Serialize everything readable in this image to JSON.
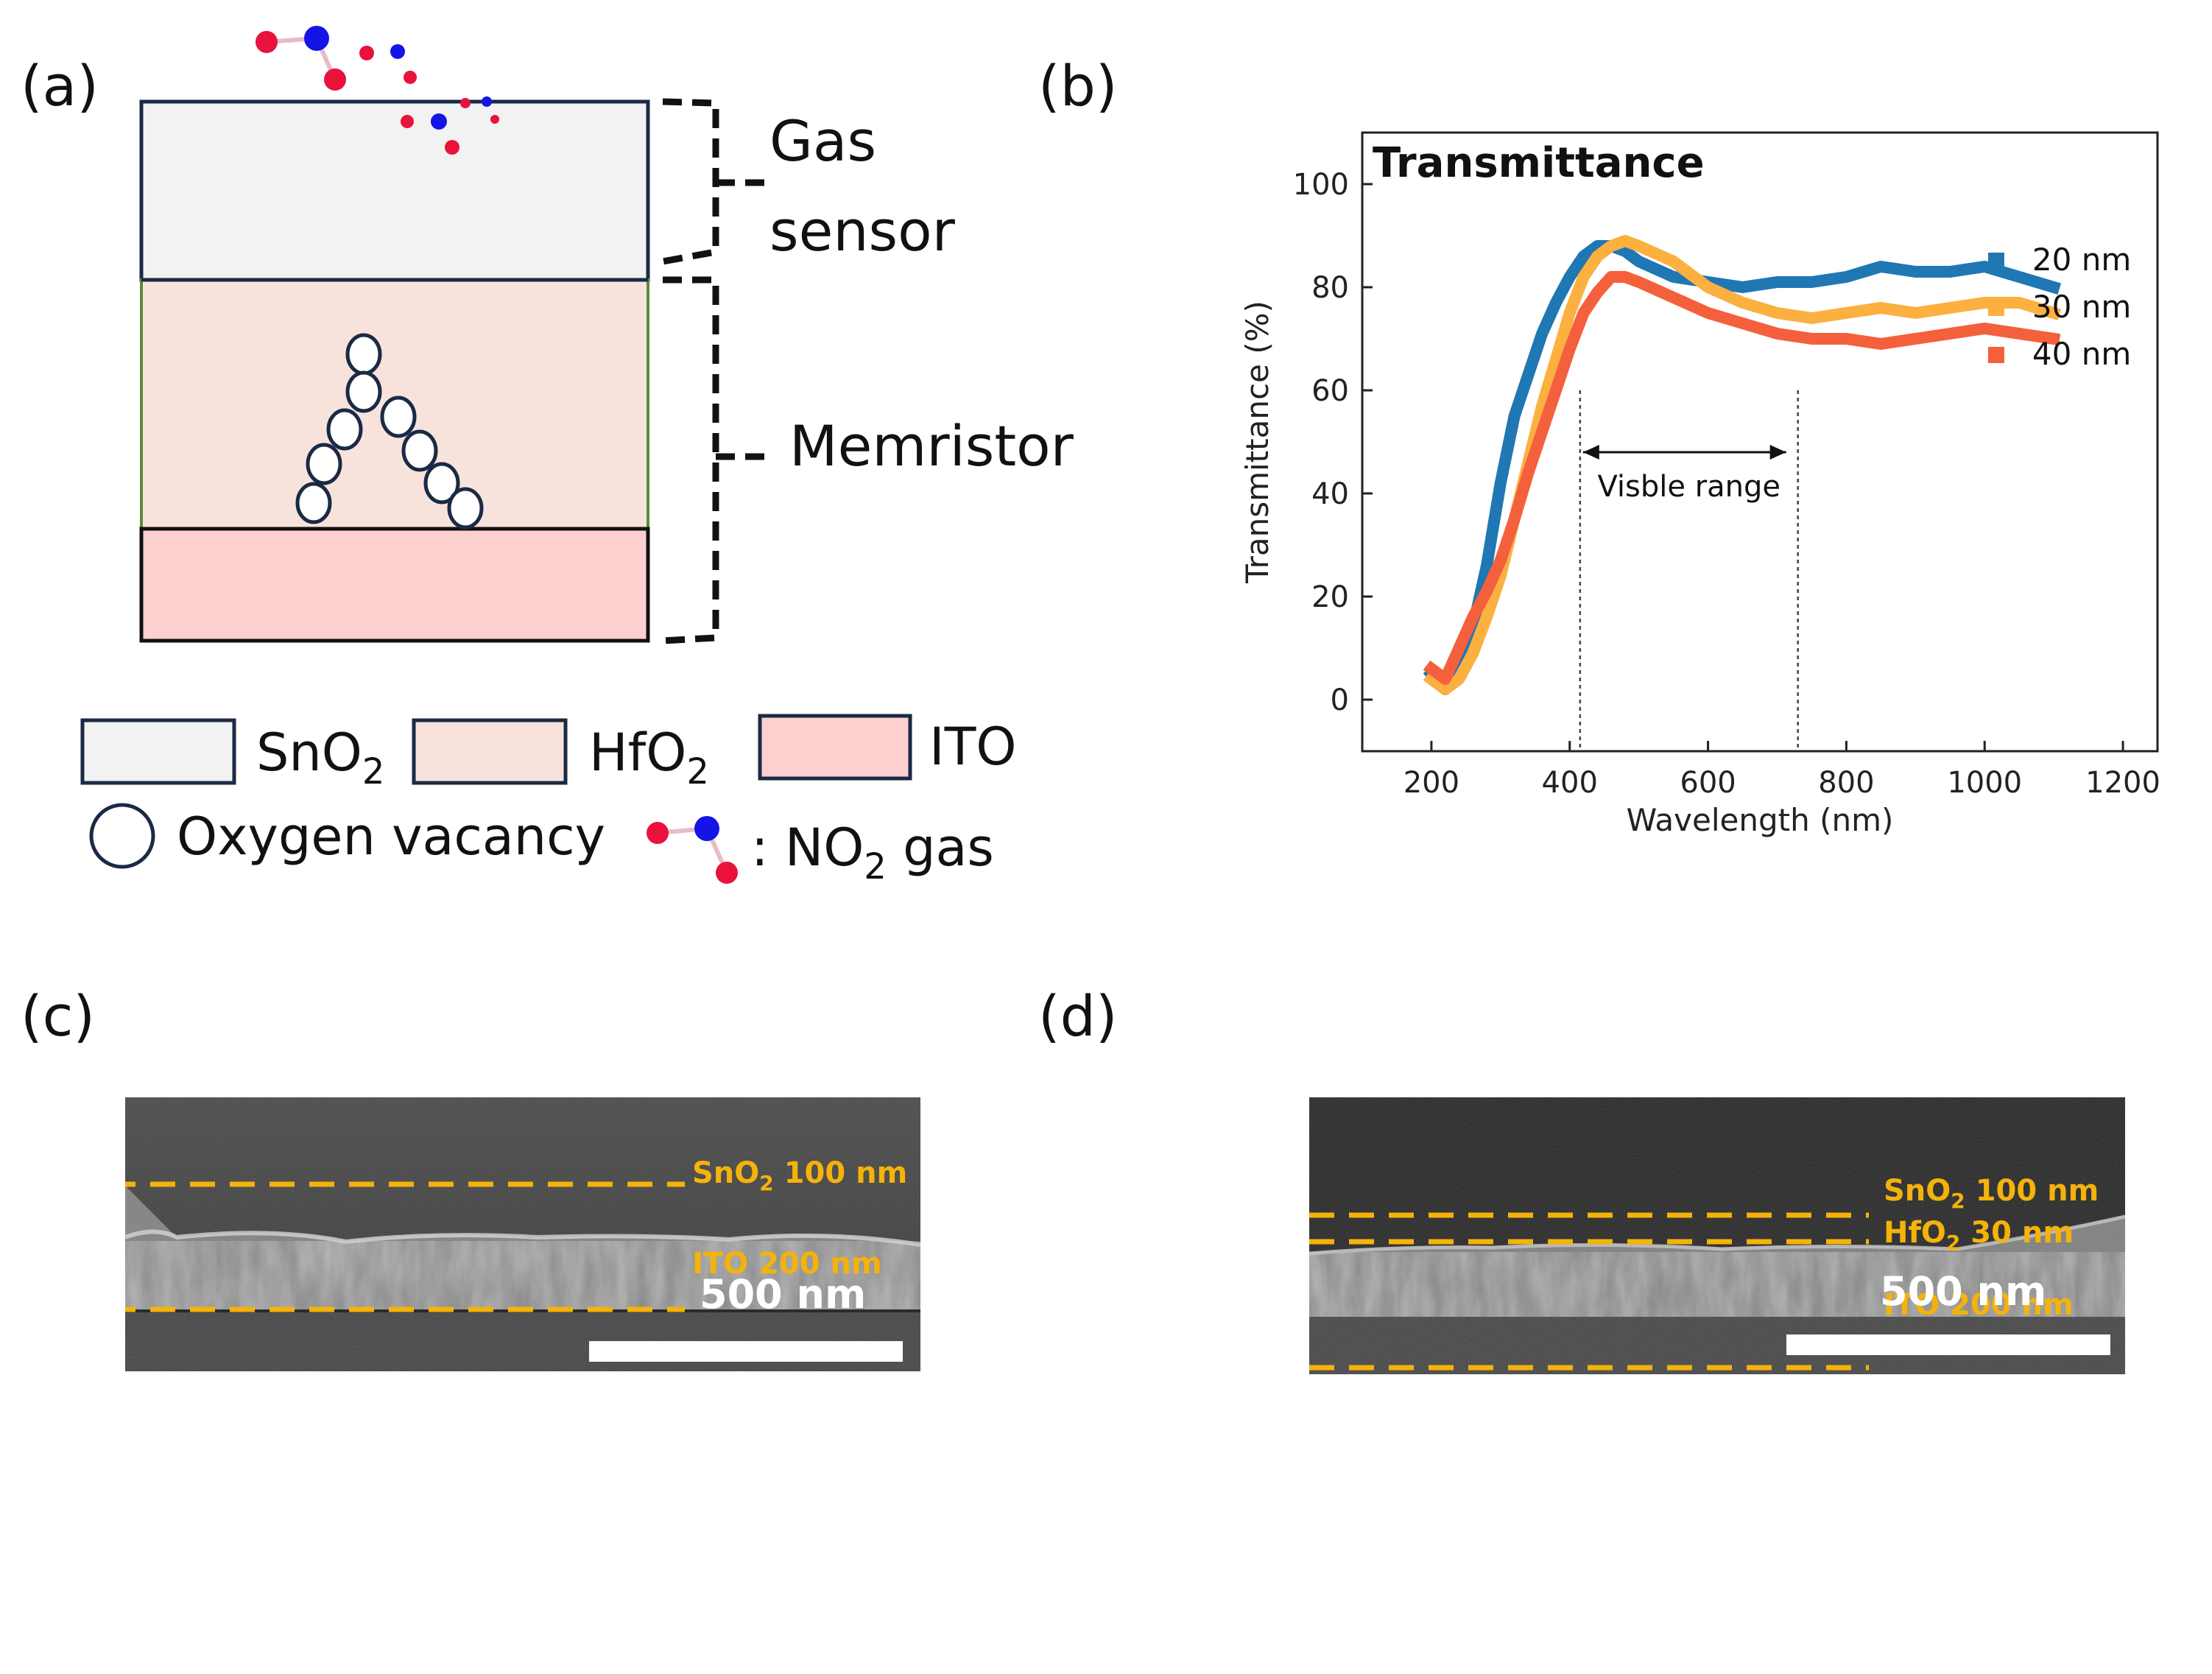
{
  "panels": {
    "a": "(a)",
    "b": "(b)",
    "c": "(c)",
    "d": "(d)"
  },
  "diagram_a": {
    "gas_sensor_label_line1": "Gas",
    "gas_sensor_label_line2": "sensor",
    "memristor_label": "Memristor",
    "legend": {
      "sno2": "SnO",
      "sno2_sub": "2",
      "hfo2": "HfO",
      "hfo2_sub": "2",
      "ito": "ITO",
      "oxygen_vacancy": "Oxygen vacancy",
      "no2_prefix": ": NO",
      "no2_sub": "2",
      "no2_suffix": " gas"
    },
    "colors": {
      "sno2": "#f2f2f2",
      "hfo2": "#f8e3dc",
      "ito": "#fdd0cf",
      "oxygen_red": "#e8123c",
      "nitrogen_blue": "#1414e6",
      "outline": "#1b2a44"
    }
  },
  "chart_data": {
    "type": "line",
    "title": "Transmittance",
    "xlabel": "Wavelength (nm)",
    "ylabel": "Transmittance (%)",
    "xlim": [
      100,
      1250
    ],
    "ylim": [
      -10,
      110
    ],
    "xticks": [
      200,
      400,
      600,
      800,
      1000,
      1200
    ],
    "yticks": [
      0,
      20,
      40,
      60,
      80,
      100
    ],
    "legend_position": "right",
    "annotation": "Visble range",
    "visible_range": [
      415,
      730
    ],
    "series": [
      {
        "name": "20 nm",
        "color": "#1f77b4",
        "x": [
          200,
          220,
          240,
          260,
          280,
          300,
          320,
          340,
          360,
          380,
          400,
          420,
          440,
          460,
          480,
          500,
          550,
          600,
          650,
          700,
          750,
          800,
          850,
          900,
          950,
          1000,
          1050,
          1100
        ],
        "y": [
          5,
          2,
          6,
          14,
          26,
          42,
          55,
          63,
          71,
          77,
          82,
          86,
          88,
          88,
          87,
          85,
          82,
          81,
          80,
          81,
          81,
          82,
          84,
          83,
          83,
          84,
          82,
          80
        ]
      },
      {
        "name": "30 nm",
        "color": "#fbb040",
        "x": [
          200,
          220,
          240,
          260,
          280,
          300,
          320,
          340,
          360,
          380,
          400,
          420,
          440,
          460,
          480,
          500,
          550,
          600,
          650,
          700,
          750,
          800,
          850,
          900,
          950,
          1000,
          1050,
          1100
        ],
        "y": [
          4,
          2,
          4,
          9,
          16,
          24,
          35,
          46,
          57,
          66,
          75,
          82,
          86,
          88,
          89,
          88,
          85,
          80,
          77,
          75,
          74,
          75,
          76,
          75,
          76,
          77,
          77,
          75
        ]
      },
      {
        "name": "40 nm",
        "color": "#f4603c",
        "x": [
          200,
          220,
          240,
          260,
          280,
          300,
          320,
          340,
          360,
          380,
          400,
          420,
          440,
          460,
          480,
          500,
          550,
          600,
          650,
          700,
          750,
          800,
          850,
          900,
          950,
          1000,
          1050,
          1100
        ],
        "y": [
          6,
          4,
          10,
          16,
          21,
          27,
          35,
          44,
          52,
          60,
          68,
          75,
          79,
          82,
          82,
          81,
          78,
          75,
          73,
          71,
          70,
          70,
          69,
          70,
          71,
          72,
          71,
          70
        ]
      }
    ]
  },
  "sem_c": {
    "label_sno2": "SnO",
    "label_sno2_sub": "2",
    "label_sno2_value": " 100 nm",
    "label_ito": "ITO 200 nm",
    "scale_bar": "500 nm"
  },
  "sem_d": {
    "label_sno2": "SnO",
    "label_sno2_sub": "2",
    "label_sno2_value": " 100 nm",
    "label_hfo2": "HfO",
    "label_hfo2_sub": "2",
    "label_hfo2_value": " 30 nm",
    "label_ito": "ITO 200 nm",
    "scale_bar": "500 nm"
  }
}
